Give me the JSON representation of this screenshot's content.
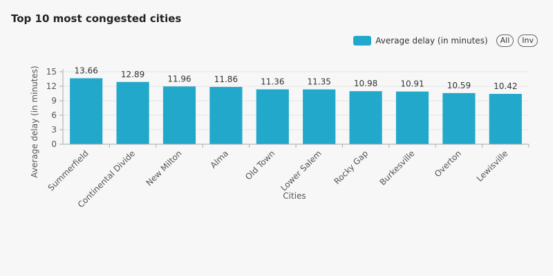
{
  "title": "Top 10 most congested cities",
  "legend": {
    "label": "Average delay (in minutes)",
    "all_button": "All",
    "inv_button": "Inv"
  },
  "colors": {
    "bar": "#22a8cb",
    "axis": "#aaaaaa",
    "grid": "#e6e6e6",
    "text": "#555555"
  },
  "chart_data": {
    "type": "bar",
    "categories": [
      "Summerfield",
      "Continental Divide",
      "New Milton",
      "Alma",
      "Old Town",
      "Lower Salem",
      "Rocky Gap",
      "Burkesville",
      "Overton",
      "Lewisville"
    ],
    "series": [
      {
        "name": "Average delay (in minutes)",
        "values": [
          13.66,
          12.89,
          11.96,
          11.86,
          11.36,
          11.35,
          10.98,
          10.91,
          10.59,
          10.42
        ]
      }
    ],
    "data_labels": [
      "13.66",
      "12.89",
      "11.96",
      "11.86",
      "11.36",
      "11.35",
      "10.98",
      "10.91",
      "10.59",
      "10.42"
    ],
    "xlabel": "Cities",
    "ylabel": "Average delay (in minutes)",
    "ylim": [
      0,
      15
    ],
    "yticks": [
      0,
      3,
      6,
      9,
      12,
      15
    ],
    "grid": true,
    "legend_position": "top-right"
  }
}
